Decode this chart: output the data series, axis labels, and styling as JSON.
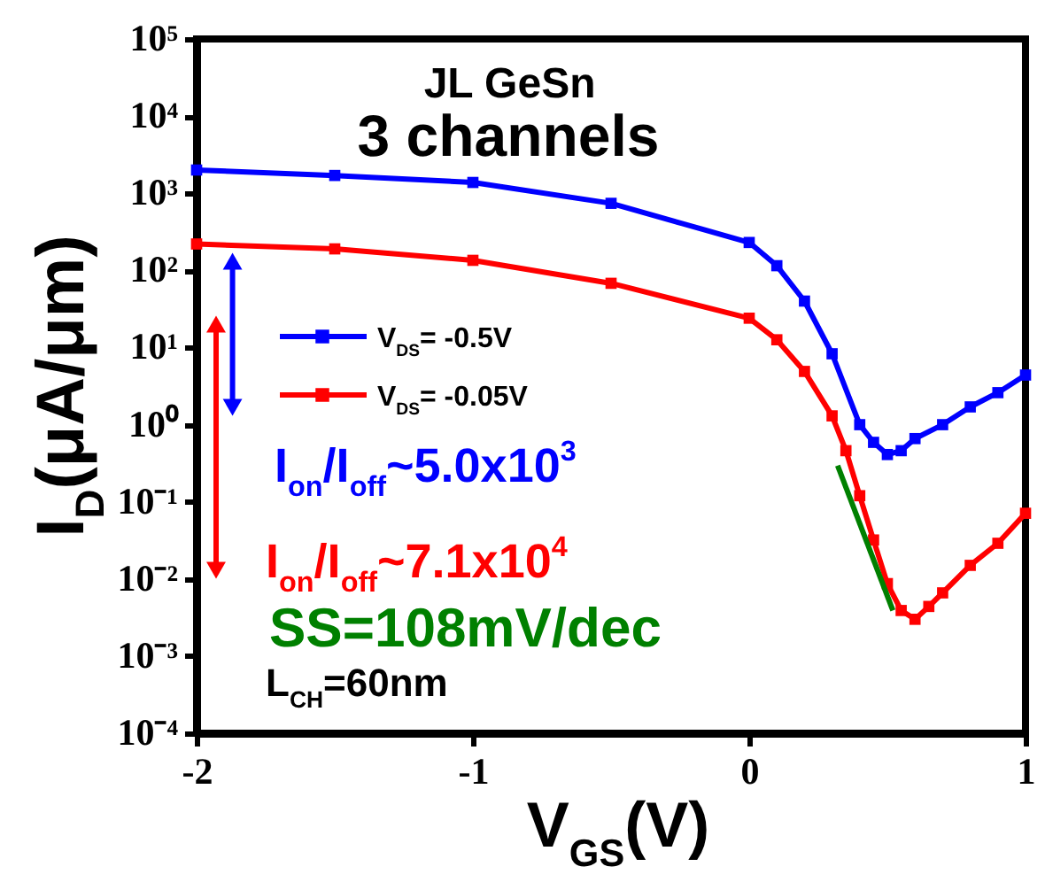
{
  "chart_data": {
    "type": "line",
    "xlabel": "V$_{GS}$(V)",
    "ylabel": "I$_{D}$(μA/μm)",
    "annotations": [
      "JL GeSn",
      "3 channels",
      {
        "text": "I$_{on}$/I$_{off}$~5.0x10$^{3}$",
        "x": -1.87,
        "y": 180
      },
      "I$_{on}$/I$_{off}$~7.1x10$^{4}$",
      "L$_{CH}$=60nm"
    ],
    "series": [
      {
        "name": "V$_{DS}$= -0.5V",
        "color": "#0000ff",
        "x": [
          -2,
          -1.5,
          -1,
          -0.5,
          0,
          0.1,
          0.2,
          0.3,
          0.4,
          0.45,
          0.5,
          0.55,
          0.6,
          0.7,
          0.8,
          0.9,
          1
        ],
        "values": [
          2000,
          1700,
          1380,
          740,
          230,
          115,
          40,
          8.3,
          1.0,
          0.59,
          0.41,
          0.46,
          0.66,
          1.0,
          1.7,
          2.6,
          4.4
        ]
      },
      {
        "name": "V$_{DS}$= -0.05V",
        "color": "#ff0000",
        "x": [
          -2,
          -1.5,
          -1,
          -0.5,
          0,
          0.1,
          0.2,
          0.3,
          0.35,
          0.4,
          0.45,
          0.5,
          0.55,
          0.6,
          0.65,
          0.7,
          0.8,
          0.9,
          1
        ],
        "values": [
          220,
          190,
          135,
          68,
          24,
          12.6,
          4.9,
          1.3,
          0.46,
          0.12,
          0.032,
          0.0087,
          0.0039,
          0.003,
          0.0044,
          0.0066,
          0.015,
          0.029,
          0.071
        ]
      },
      {
        "name": "SS=108mV/dec",
        "color": "#008000",
        "type": "line",
        "marker": "none",
        "x": [
          0.32,
          0.52
        ],
        "values": [
          0.295,
          0.0039
        ]
      }
    ],
    "xlim": [
      -2,
      1
    ],
    "xticks": [
      -2,
      -1,
      0,
      1
    ],
    "log": "y",
    "ylim": [
      0.0001,
      100000
    ],
    "yticks": [
      {
        "value": 0.0001,
        "label": "10⁻⁴"
      },
      {
        "value": 0.001,
        "label": "10⁻³"
      },
      {
        "value": 0.01,
        "label": "10⁻²"
      },
      {
        "value": 0.1,
        "label": "10⁻¹"
      },
      {
        "value": 1,
        "label": "10⁰"
      },
      {
        "value": 10,
        "label": "10¹"
      },
      {
        "value": 100,
        "label": "10²"
      },
      {
        "value": 1000,
        "label": "10³"
      },
      {
        "value": 10000,
        "label": "10⁴"
      },
      {
        "value": 100000,
        "label": "10⁵"
      }
    ],
    "grid": false,
    "legend": "left",
    "marker": "square",
    "line_style": "solid"
  }
}
